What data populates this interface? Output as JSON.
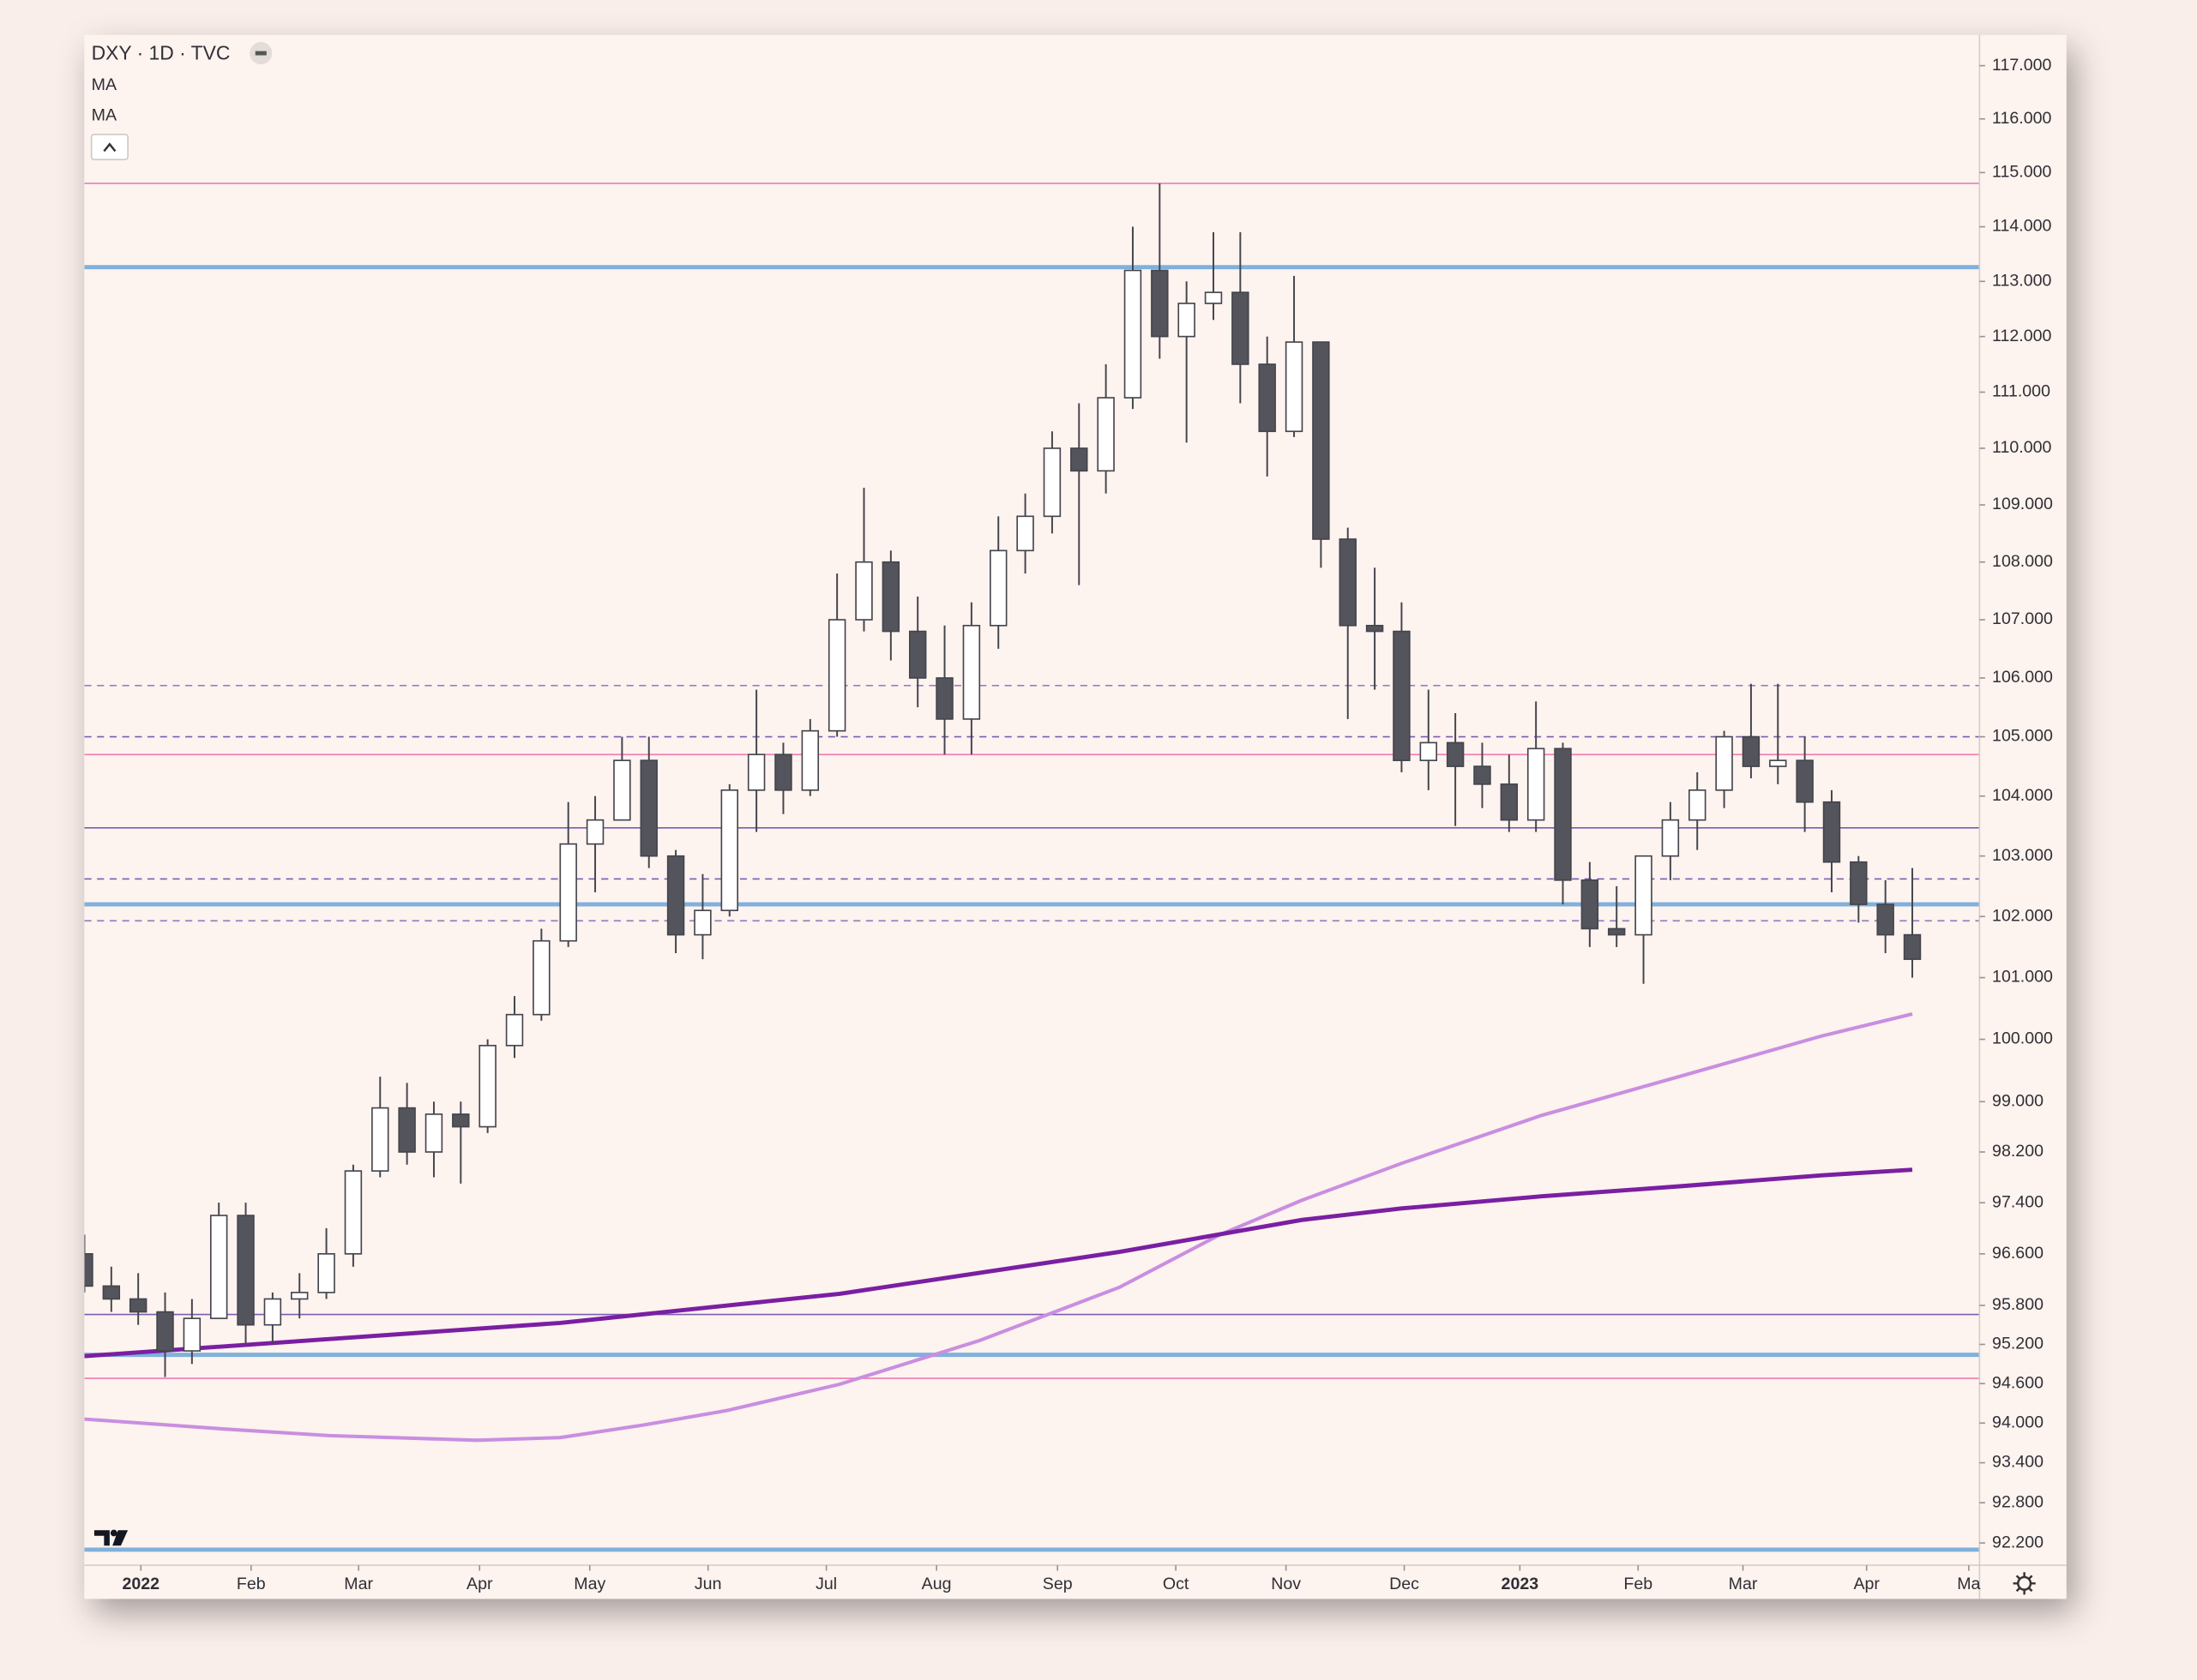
{
  "chart_data": {
    "type": "candlestick",
    "title": "DXY · 1D · TVC",
    "log_scale": true,
    "ylim": [
      91.87,
      117.58
    ],
    "yticks": [
      {
        "value": 117,
        "label": "117.000"
      },
      {
        "value": 116,
        "label": "116.000"
      },
      {
        "value": 115,
        "label": "115.000"
      },
      {
        "value": 114,
        "label": "114.000"
      },
      {
        "value": 113,
        "label": "113.000"
      },
      {
        "value": 112,
        "label": "112.000"
      },
      {
        "value": 111,
        "label": "111.000"
      },
      {
        "value": 110,
        "label": "110.000"
      },
      {
        "value": 109,
        "label": "109.000"
      },
      {
        "value": 108,
        "label": "108.000"
      },
      {
        "value": 107,
        "label": "107.000"
      },
      {
        "value": 106,
        "label": "106.000"
      },
      {
        "value": 105,
        "label": "105.000"
      },
      {
        "value": 104,
        "label": "104.000"
      },
      {
        "value": 103,
        "label": "103.000"
      },
      {
        "value": 102,
        "label": "102.000"
      },
      {
        "value": 101,
        "label": "101.000"
      },
      {
        "value": 100,
        "label": "100.000"
      },
      {
        "value": 99,
        "label": "99.000"
      },
      {
        "value": 98.2,
        "label": "98.200"
      },
      {
        "value": 97.4,
        "label": "97.400"
      },
      {
        "value": 96.6,
        "label": "96.600"
      },
      {
        "value": 95.8,
        "label": "95.800"
      },
      {
        "value": 95.2,
        "label": "95.200"
      },
      {
        "value": 94.6,
        "label": "94.600"
      },
      {
        "value": 94,
        "label": "94.000"
      },
      {
        "value": 93.4,
        "label": "93.400"
      },
      {
        "value": 92.8,
        "label": "92.800"
      },
      {
        "value": 92.2,
        "label": "92.200"
      }
    ],
    "xlim": [
      0,
      70.5
    ],
    "xticks": [
      {
        "value": 2.1,
        "label": "2022"
      },
      {
        "value": 6.2,
        "label": "Feb"
      },
      {
        "value": 10.2,
        "label": "Mar"
      },
      {
        "value": 14.7,
        "label": "Apr"
      },
      {
        "value": 18.8,
        "label": "May"
      },
      {
        "value": 23.2,
        "label": "Jun"
      },
      {
        "value": 27.6,
        "label": "Jul"
      },
      {
        "value": 31.7,
        "label": "Aug"
      },
      {
        "value": 36.2,
        "label": "Sep"
      },
      {
        "value": 40.6,
        "label": "Oct"
      },
      {
        "value": 44.7,
        "label": "Nov"
      },
      {
        "value": 49.1,
        "label": "Dec"
      },
      {
        "value": 53.4,
        "label": "2023"
      },
      {
        "value": 57.8,
        "label": "Feb"
      },
      {
        "value": 61.7,
        "label": "Mar"
      },
      {
        "value": 66.3,
        "label": "Apr"
      },
      {
        "value": 70.1,
        "label": "Ma"
      }
    ],
    "candles": {
      "up_color": "#ffffff",
      "down_color": "#54545c",
      "edge_color": "#44444c",
      "open": [
        96.6,
        96.1,
        95.9,
        95.7,
        95.1,
        95.6,
        97.2,
        95.5,
        95.9,
        96.0,
        96.6,
        97.9,
        98.9,
        98.2,
        98.8,
        98.6,
        99.9,
        100.4,
        101.6,
        103.2,
        103.6,
        104.6,
        103.0,
        101.7,
        102.1,
        104.1,
        104.7,
        104.1,
        105.1,
        107.0,
        108.0,
        106.8,
        106.0,
        105.3,
        106.9,
        108.2,
        108.8,
        110.0,
        109.6,
        110.9,
        113.2,
        112.0,
        112.6,
        112.8,
        111.5,
        110.3,
        111.9,
        108.4,
        106.9,
        106.8,
        104.6,
        104.9,
        104.5,
        104.2,
        103.6,
        104.8,
        102.6,
        101.8,
        101.7,
        103.0,
        103.6,
        104.1,
        105.0,
        104.5,
        104.6,
        103.9,
        102.9,
        102.2,
        101.7
      ],
      "high": [
        96.9,
        96.4,
        96.3,
        96.0,
        95.9,
        97.4,
        97.4,
        96.0,
        96.3,
        97.0,
        98.0,
        99.4,
        99.3,
        99.0,
        99.0,
        100.0,
        100.7,
        101.8,
        103.9,
        104.0,
        105.0,
        105.0,
        103.1,
        102.7,
        104.2,
        105.8,
        104.9,
        105.3,
        107.8,
        109.3,
        108.2,
        107.4,
        106.9,
        107.3,
        108.8,
        109.2,
        110.3,
        110.8,
        111.5,
        114.0,
        114.8,
        113.0,
        113.9,
        113.9,
        112.0,
        113.1,
        111.9,
        108.6,
        107.9,
        107.3,
        105.8,
        105.4,
        104.9,
        104.7,
        105.6,
        104.9,
        102.9,
        102.5,
        103.0,
        103.9,
        104.4,
        105.1,
        105.9,
        105.9,
        105.0,
        104.1,
        103.0,
        102.6,
        102.8
      ],
      "low": [
        96.0,
        95.7,
        95.5,
        94.7,
        94.9,
        95.6,
        95.2,
        95.2,
        95.6,
        95.9,
        96.4,
        97.8,
        98.0,
        97.8,
        97.7,
        98.5,
        99.7,
        100.3,
        101.5,
        102.4,
        103.6,
        102.8,
        101.4,
        101.3,
        102.0,
        103.4,
        103.7,
        104.0,
        105.0,
        106.8,
        106.3,
        105.5,
        104.7,
        104.7,
        106.5,
        107.8,
        108.5,
        107.6,
        109.2,
        110.7,
        111.6,
        110.1,
        112.3,
        110.8,
        109.5,
        110.2,
        107.9,
        105.3,
        105.8,
        104.4,
        104.1,
        103.5,
        103.8,
        103.4,
        103.4,
        102.2,
        101.5,
        101.5,
        100.9,
        102.6,
        103.1,
        103.8,
        104.3,
        104.2,
        103.4,
        102.4,
        101.9,
        101.4,
        101.0
      ],
      "close": [
        96.1,
        95.9,
        95.7,
        95.1,
        95.6,
        97.2,
        95.5,
        95.9,
        96.0,
        96.6,
        97.9,
        98.9,
        98.2,
        98.8,
        98.6,
        99.9,
        100.4,
        101.6,
        103.2,
        103.6,
        104.6,
        103.0,
        101.7,
        102.1,
        104.1,
        104.7,
        104.1,
        105.1,
        107.0,
        108.0,
        106.8,
        106.0,
        105.3,
        106.9,
        108.2,
        108.8,
        110.0,
        109.6,
        110.9,
        113.2,
        112.0,
        112.6,
        112.8,
        111.5,
        110.3,
        111.9,
        108.4,
        106.9,
        106.8,
        104.6,
        104.9,
        104.5,
        104.2,
        103.6,
        104.8,
        102.6,
        101.8,
        101.7,
        103.0,
        103.6,
        104.1,
        105.0,
        104.5,
        104.6,
        103.9,
        102.9,
        102.2,
        101.7,
        101.3
      ]
    },
    "series": [
      {
        "name": "MA",
        "color": "#c98ee0",
        "x": [
          0,
          5.2,
          9.1,
          14.6,
          17.7,
          20.8,
          23.9,
          28.1,
          33.3,
          38.5,
          42.2,
          45.3,
          49.0,
          54.2,
          59.4,
          64.6,
          68
        ],
        "values": [
          94.06,
          93.91,
          93.81,
          93.74,
          93.78,
          93.97,
          94.19,
          94.59,
          95.26,
          96.08,
          96.89,
          97.44,
          98.02,
          98.78,
          99.41,
          100.05,
          100.41
        ]
      },
      {
        "name": "MA",
        "color": "#7a1fa2",
        "x": [
          0,
          7.3,
          17.7,
          28.1,
          38.5,
          45.3,
          49.0,
          54.2,
          59.4,
          64.6,
          68
        ],
        "values": [
          95.02,
          95.23,
          95.53,
          95.98,
          96.63,
          97.13,
          97.31,
          97.5,
          97.66,
          97.83,
          97.92
        ]
      }
    ],
    "levels": [
      {
        "value": 114.8,
        "color": "#f07ab4",
        "style": "solid"
      },
      {
        "value": 113.26,
        "color": "#7fb1dc",
        "style": "thick"
      },
      {
        "value": 105.87,
        "color": "#9a7fc0",
        "style": "dashed"
      },
      {
        "value": 105.0,
        "color": "#7c5cb0",
        "style": "dashed"
      },
      {
        "value": 104.7,
        "color": "#f07ab4",
        "style": "solid"
      },
      {
        "value": 103.47,
        "color": "#7c5cb0",
        "style": "solid"
      },
      {
        "value": 102.62,
        "color": "#7c5cb0",
        "style": "dashed"
      },
      {
        "value": 102.2,
        "color": "#7fb1dc",
        "style": "thick"
      },
      {
        "value": 101.93,
        "color": "#9a7fc0",
        "style": "dashed"
      },
      {
        "value": 95.66,
        "color": "#7c5cb0",
        "style": "solid"
      },
      {
        "value": 95.04,
        "color": "#7fb1dc",
        "style": "thick"
      },
      {
        "value": 94.68,
        "color": "#f07ab4",
        "style": "solid"
      },
      {
        "value": 92.1,
        "color": "#7fb1dc",
        "style": "thick"
      }
    ]
  }
}
